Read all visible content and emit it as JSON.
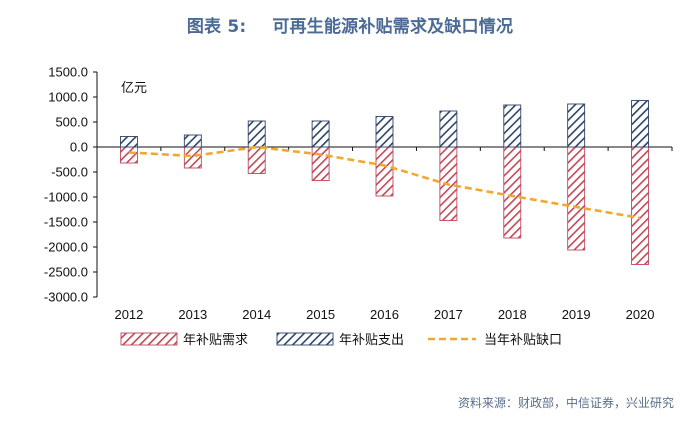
{
  "title": {
    "prefix": "图表 5:",
    "text": "可再生能源补贴需求及缺口情况"
  },
  "source": "资料来源：财政部，中信证券，兴业研究",
  "chart_data": {
    "type": "bar",
    "title": "可再生能源补贴需求及缺口情况",
    "unit": "亿元",
    "categories": [
      "2012",
      "2013",
      "2014",
      "2015",
      "2016",
      "2017",
      "2018",
      "2019",
      "2020"
    ],
    "ylim": [
      -3000,
      1500
    ],
    "yticks": [
      1500,
      1000,
      500,
      0,
      -500,
      -1000,
      -1500,
      -2000,
      -2500,
      -3000
    ],
    "ytick_labels": [
      "1500.0",
      "1000.0",
      "500.0",
      "0.0",
      "-500.0",
      "-1000.0",
      "-1500.0",
      "-2000.0",
      "-2500.0",
      "-3000.0"
    ],
    "grid": false,
    "legend_position": "bottom",
    "series": [
      {
        "name": "年补贴需求",
        "type": "bar",
        "color": "#c0485a",
        "pattern": "hatch",
        "values": [
          -320,
          -420,
          -530,
          -670,
          -980,
          -1470,
          -1820,
          -2060,
          -2350
        ]
      },
      {
        "name": "年补贴支出",
        "type": "bar",
        "color": "#2e4466",
        "pattern": "hatch",
        "values": [
          210,
          240,
          520,
          520,
          610,
          720,
          840,
          860,
          930
        ]
      },
      {
        "name": "当年补贴缺口",
        "type": "line",
        "color": "#f0a830",
        "style": "dashed",
        "values": [
          -110,
          -180,
          0,
          -150,
          -370,
          -750,
          -980,
          -1200,
          -1420
        ]
      }
    ]
  }
}
